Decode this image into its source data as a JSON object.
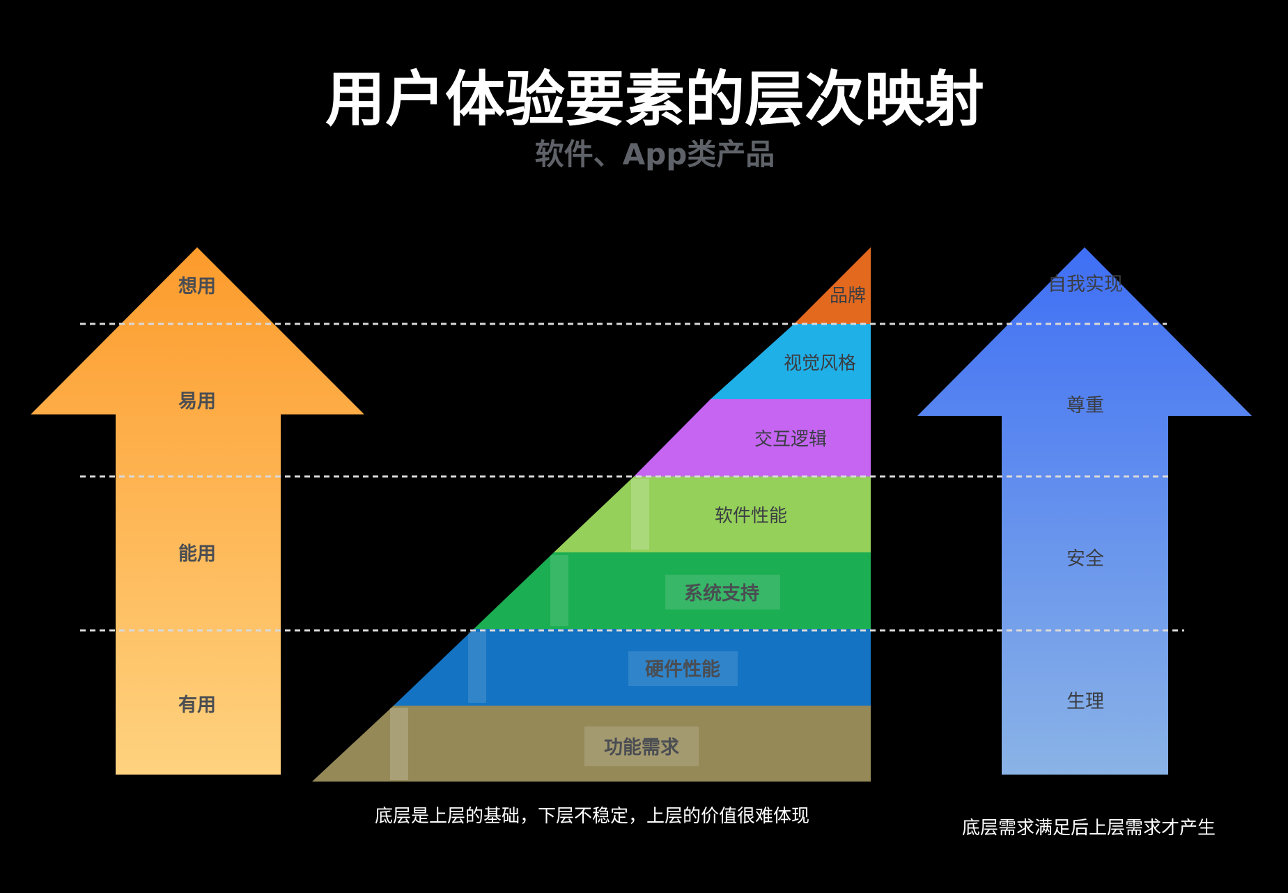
{
  "title": "用户体验要素的层次映射",
  "subtitle": "软件、App类产品",
  "left_arrow": {
    "labels": [
      "想用",
      "易用",
      "能用",
      "有用"
    ]
  },
  "pyramid": {
    "layers": [
      {
        "label": "品牌",
        "color": "#e3691f"
      },
      {
        "label": "视觉风格",
        "color": "#20b0e8"
      },
      {
        "label": "交互逻辑",
        "color": "#c565f2"
      },
      {
        "label": "软件性能",
        "color": "#95d05a"
      },
      {
        "label": "系统支持",
        "color": "#1cae52"
      },
      {
        "label": "硬件性能",
        "color": "#1473c2"
      },
      {
        "label": "功能需求",
        "color": "#948957"
      }
    ],
    "caption": "底层是上层的基础，下层不稳定，上层的价值很难体现"
  },
  "right_arrow": {
    "labels": [
      "自我实现",
      "尊重",
      "安全",
      "生理"
    ],
    "caption": "底层需求满足后上层需求才产生"
  },
  "colors": {
    "orange_top": "#fd9b2c",
    "orange_bottom": "#fed27f",
    "blue_top": "#3f6ff5",
    "blue_bottom": "#8ab3e6",
    "dash": "#d9d9d9"
  }
}
